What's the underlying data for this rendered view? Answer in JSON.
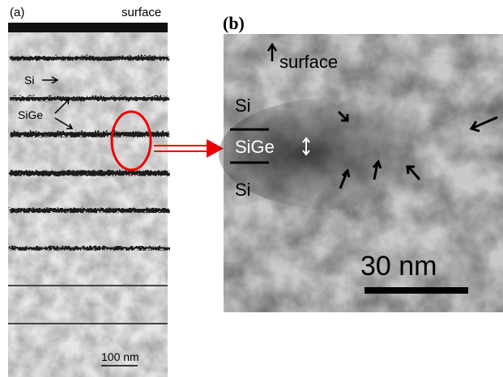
{
  "panel_a": {
    "label": "(a)",
    "surface": "surface",
    "si": "Si",
    "sige": "SiGe",
    "scale": "100 nm"
  },
  "panel_b": {
    "label": "(b)",
    "surface": "surface",
    "si_top": "Si",
    "sige": "SiGe",
    "si_bottom": "Si",
    "scale": "30 nm"
  }
}
